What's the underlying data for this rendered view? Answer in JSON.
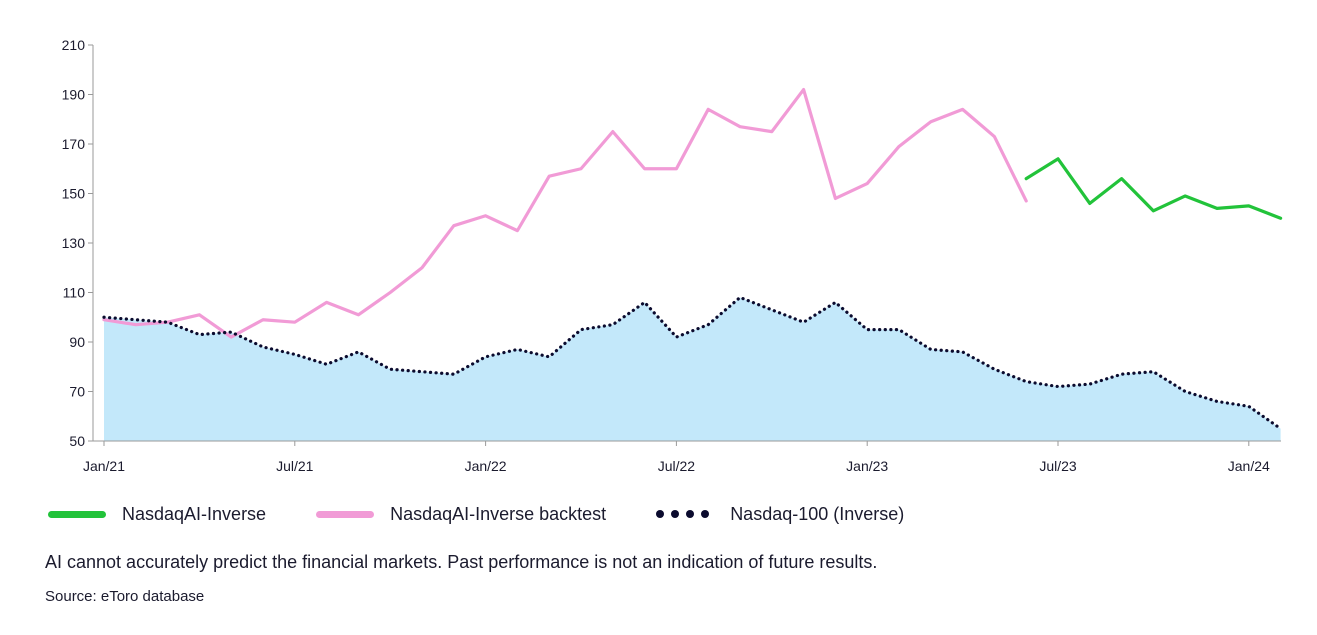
{
  "chart_data": {
    "type": "line",
    "title": "",
    "xlabel": "",
    "ylabel": "",
    "ylim": [
      50,
      210
    ],
    "yticks": [
      50,
      70,
      90,
      110,
      130,
      150,
      170,
      190,
      210
    ],
    "x_tick_labels": [
      "Jan/21",
      "Jul/21",
      "Jan/22",
      "Jul/22",
      "Jan/23",
      "Jul/23",
      "Jan/24"
    ],
    "x_tick_months": [
      0,
      6,
      12,
      18,
      24,
      30,
      36
    ],
    "x_range_months": [
      0,
      37
    ],
    "grid": false,
    "legend_position": "bottom",
    "series": [
      {
        "name": "NasdaqAI-Inverse",
        "color": "#22c33a",
        "style": "solid",
        "x_months": [
          29,
          30,
          31,
          32,
          33,
          34,
          35,
          36,
          37
        ],
        "values": [
          156,
          164,
          146,
          156,
          143,
          149,
          144,
          145,
          140
        ]
      },
      {
        "name": "NasdaqAI-Inverse backtest",
        "color": "#f19bd6",
        "style": "solid",
        "x_months": [
          0,
          1,
          2,
          3,
          4,
          5,
          6,
          7,
          8,
          9,
          10,
          11,
          12,
          13,
          14,
          15,
          16,
          17,
          18,
          19,
          20,
          21,
          22,
          23,
          24,
          25,
          26,
          27,
          28,
          29
        ],
        "values": [
          99,
          97,
          98,
          101,
          92,
          99,
          98,
          106,
          101,
          110,
          120,
          137,
          141,
          135,
          157,
          160,
          175,
          160,
          160,
          184,
          177,
          175,
          192,
          148,
          154,
          169,
          179,
          184,
          173,
          147
        ]
      },
      {
        "name": "Nasdaq-100 (Inverse)",
        "color": "#0b0b2e",
        "style": "dotted",
        "fill": "#c3e8fa",
        "x_months": [
          0,
          1,
          2,
          3,
          4,
          5,
          6,
          7,
          8,
          9,
          10,
          11,
          12,
          13,
          14,
          15,
          16,
          17,
          18,
          19,
          20,
          21,
          22,
          23,
          24,
          25,
          26,
          27,
          28,
          29,
          30,
          31,
          32,
          33,
          34,
          35,
          36,
          37
        ],
        "values": [
          100,
          99,
          98,
          93,
          94,
          88,
          85,
          81,
          86,
          79,
          78,
          77,
          84,
          87,
          84,
          95,
          97,
          106,
          92,
          97,
          108,
          103,
          98,
          106,
          95,
          95,
          87,
          86,
          79,
          74,
          72,
          73,
          77,
          78,
          70,
          66,
          64,
          55
        ]
      }
    ]
  },
  "legend": [
    {
      "label": "NasdaqAI-Inverse"
    },
    {
      "label": "NasdaqAI-Inverse backtest"
    },
    {
      "label": "Nasdaq-100 (Inverse)"
    }
  ],
  "footer": {
    "disclaimer": "AI cannot accurately predict the financial markets. Past performance is not an indication of future results.",
    "source": "Source: eToro database"
  },
  "colors": {
    "live": "#22c33a",
    "backtest": "#f19bd6",
    "benchmark": "#0b0b2e",
    "area": "#c3e8fa",
    "axis": "#9a9a9a"
  }
}
